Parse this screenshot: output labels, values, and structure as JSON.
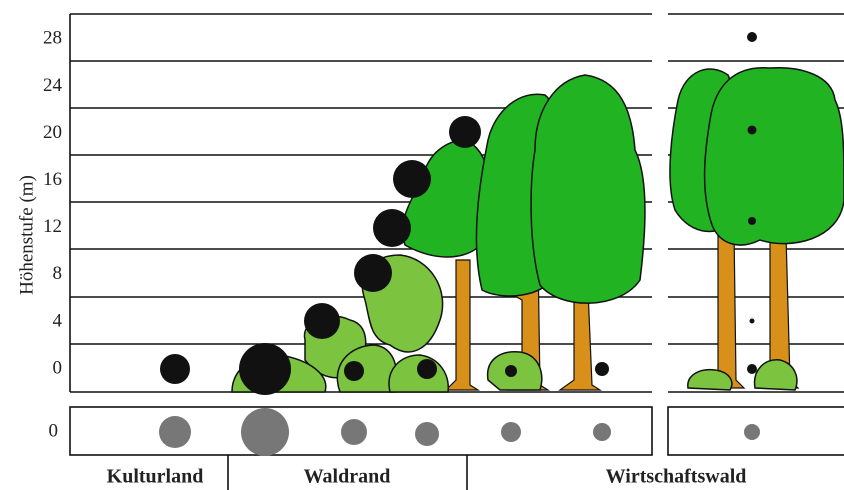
{
  "axis_label": "Höhenstufe (m)",
  "yticks": [
    "0",
    "4",
    "8",
    "12",
    "16",
    "20",
    "24",
    "28"
  ],
  "ground_tick": "0",
  "zones": [
    "Kulturland",
    "Waldrand",
    "Wirtschaftswald"
  ]
}
